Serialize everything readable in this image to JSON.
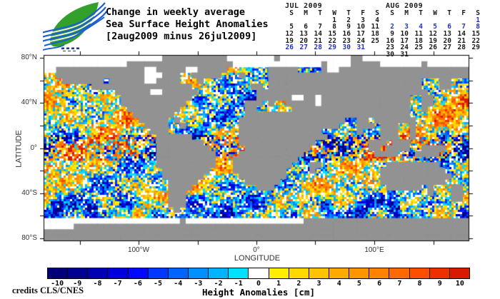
{
  "header": {
    "title_lines": [
      "Change in weekly average",
      "Sea Surface Height Anomalies",
      "[2aug2009 minus 26jul2009]"
    ]
  },
  "logo": {
    "name": "cls-leaf-and-waves-logo",
    "leaf_color": "#33A02C",
    "wave_color": "#1B5FD0"
  },
  "calendars": [
    {
      "month": "JUL 2009",
      "day_headers": [
        "S",
        "M",
        "T",
        "W",
        "T",
        "F",
        "S"
      ],
      "weeks": [
        [
          "",
          "",
          "",
          "1",
          "2",
          "3",
          "4"
        ],
        [
          "5",
          "6",
          "7",
          "8",
          "9",
          "10",
          "11"
        ],
        [
          "12",
          "13",
          "14",
          "15",
          "16",
          "17",
          "18"
        ],
        [
          "19",
          "20",
          "21",
          "22",
          "23",
          "24",
          "25"
        ],
        [
          "26",
          "27",
          "28",
          "29",
          "30",
          "31",
          ""
        ]
      ],
      "highlighted_days": [
        "26",
        "27",
        "28",
        "29",
        "30",
        "31"
      ],
      "highlight_color": "#2233CC"
    },
    {
      "month": "AUG 2009",
      "day_headers": [
        "S",
        "M",
        "T",
        "W",
        "T",
        "F",
        "S"
      ],
      "weeks": [
        [
          "",
          "",
          "",
          "",
          "",
          "",
          "1"
        ],
        [
          "2",
          "3",
          "4",
          "5",
          "6",
          "7",
          "8"
        ],
        [
          "9",
          "10",
          "11",
          "12",
          "13",
          "14",
          "15"
        ],
        [
          "16",
          "17",
          "18",
          "19",
          "20",
          "21",
          "22"
        ],
        [
          "23",
          "24",
          "25",
          "26",
          "27",
          "28",
          "29"
        ],
        [
          "30",
          "31",
          "",
          "",
          "",
          "",
          ""
        ]
      ],
      "highlighted_days": [
        "1",
        "2",
        "3",
        "4",
        "5",
        "6",
        "7",
        "8"
      ],
      "highlight_color": "#2233CC"
    }
  ],
  "map": {
    "x_axis": {
      "label": "LONGITUDE",
      "range": [
        -180,
        180
      ],
      "ticks": [
        {
          "deg": -100,
          "label": "100°W"
        },
        {
          "deg": 0,
          "label": "0°"
        },
        {
          "deg": 100,
          "label": "100°E"
        }
      ],
      "minor_ticks": [
        -150,
        -50,
        50,
        150
      ]
    },
    "y_axis": {
      "label": "LATITUDE",
      "range": [
        -82,
        82
      ],
      "ticks": [
        {
          "deg": 80,
          "label": "80°N"
        },
        {
          "deg": 40,
          "label": "40°N"
        },
        {
          "deg": 0,
          "label": "0°"
        },
        {
          "deg": -40,
          "label": "40°S"
        },
        {
          "deg": -80,
          "label": "80°S"
        }
      ],
      "minor_ticks": [
        60,
        20,
        -20,
        -60
      ]
    },
    "land_color": "#929292",
    "no_data_color": "#FFFFFF",
    "frame_color": "#000000",
    "land_mask": [
      "oooooooooooooooooooo###########oooooooo#oooooooooooo##oooooooooooooooooo",
      "oooooooooooooo##################ooooooooooooooo#oooo#####ooooooo#ooooooo",
      "oo###############oo#####oo#####.......#####....#oo######################",
      "..###############ooo###..#####...#....##################################",
      "...#######.######oo####...#...........##########################...##...",
      "........#################..........##.##########################...##...",
      "............######oo######..........#############################.......",
      ".............############...........######oo##o###############..##......",
      ".............###########..........###.#..#####o###############..##......",
      "..............#########...........##......####################..#.......",
      "...............#######............############################..........",
      "................#####.#..........##################..##.#######.........",
      ".................####..#.........#################...###.###..#.........",
      "..................###............##############......#...###..#.........",
      "...................######........###############.........###..#.........",
      "...................########......#############.........###.###..........",
      "...................#########......###########..........##.####..####....",
      "...................##########....###########............####...####.....",
      "...................##########...###########.............................",
      "...................##########...##########...##...........#########.....",
      "....................########....#########....#...........###########....",
      "....................#######......########................############...",
      ".....................#####........######.................###########....",
      ".....................####...........###...................######.#...##.",
      ".....................###.........................................#...##.",
      ".....................###.............................................##.",
      ".....................###................................................",
      "......................#.................................................",
      "........................................................................",
      "ooooooooooooooooooooooo#oooooooooooooooooooo############################",
      "ooooo###################################################################",
      "########################################################################",
      "########################################################################"
    ]
  },
  "colorbar": {
    "title": "Height Anomalies [cm]",
    "tick_labels": [
      "-10",
      "-9",
      "-8",
      "-7",
      "-6",
      "-5",
      "-4",
      "-3",
      "-2",
      "-1",
      "0",
      "1",
      "2",
      "3",
      "4",
      "5",
      "6",
      "7",
      "8",
      "9",
      "10"
    ],
    "colors": [
      "#00007A",
      "#000092",
      "#0000B4",
      "#0000DC",
      "#0008FF",
      "#0038FF",
      "#0064FF",
      "#0090FF",
      "#00B4FF",
      "#00E0FF",
      "#FFFFFF",
      "#FFEE00",
      "#FFD800",
      "#FFC400",
      "#FFAA00",
      "#FF9600",
      "#FF8200",
      "#FF6900",
      "#FF4E00",
      "#EE3000",
      "#D81A00"
    ]
  },
  "credits": "credits CLS/CNES",
  "chart_data": {
    "type": "heatmap",
    "title": "Change in weekly average Sea Surface Height Anomalies [2aug2009 minus 26jul2009]",
    "xlabel": "LONGITUDE",
    "ylabel": "LATITUDE",
    "xlim": [
      -180,
      180
    ],
    "ylim": [
      -82,
      82
    ],
    "x_tick_labels": [
      "100°W",
      "0°",
      "100°E"
    ],
    "y_tick_labels": [
      "80°N",
      "40°N",
      "0°",
      "40°S",
      "80°S"
    ],
    "grid": false,
    "colorbar": {
      "label": "Height Anomalies [cm]",
      "min": -10,
      "max": 10,
      "step": 1,
      "tick_labels": [
        -10,
        -9,
        -8,
        -7,
        -6,
        -5,
        -4,
        -3,
        -2,
        -1,
        0,
        1,
        2,
        3,
        4,
        5,
        6,
        7,
        8,
        9,
        10
      ],
      "colors": [
        "#00007A",
        "#000092",
        "#0000B4",
        "#0000DC",
        "#0008FF",
        "#0038FF",
        "#0064FF",
        "#0090FF",
        "#00B4FF",
        "#00E0FF",
        "#FFFFFF",
        "#FFEE00",
        "#FFD800",
        "#FFC400",
        "#FFAA00",
        "#FF9600",
        "#FF8200",
        "#FF6900",
        "#FF4E00",
        "#EE3000",
        "#D81A00"
      ],
      "units": "cm"
    },
    "weeks_compared": {
      "minuend_week": "2aug2009",
      "subtrahend_week": "26jul2009"
    },
    "land_color": "#929292",
    "no_data_color": "#FFFFFF"
  }
}
